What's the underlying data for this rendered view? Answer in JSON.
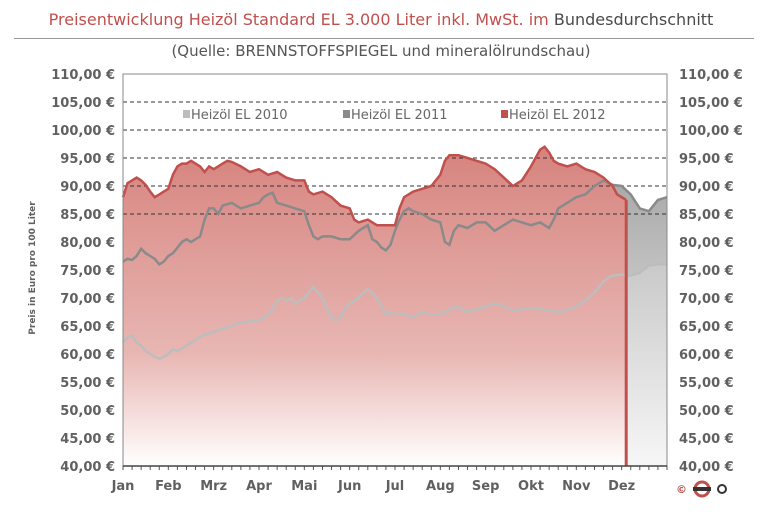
{
  "header": {
    "title_part1": "Preisentwicklung Heizöl Standard EL 3.000 Liter inkl. MwSt. im",
    "title_part2": "Bundesdurchschnitt",
    "subtitle": "(Quelle: BRENNSTOFFSPIEGEL  und mineralölrundschau)"
  },
  "logo": {
    "copyright": "©",
    "icon": "company-logo-icon"
  },
  "colors": {
    "s2010": "#bdbdbd",
    "s2011": "#8a8a8a",
    "s2012": "#c0504d",
    "fill2012": "#d98883"
  },
  "chart_data": {
    "type": "area",
    "title": "Preisentwicklung Heizöl Standard EL 3.000 Liter inkl. MwSt. im Bundesdurchschnitt",
    "ylabel": "Preis in Euro pro 100 Liter",
    "xlabel": "",
    "ylim": [
      40,
      110
    ],
    "y_ticks": [
      "40,00 €",
      "45,00 €",
      "50,00 €",
      "55,00 €",
      "60,00 €",
      "65,00 €",
      "70,00 €",
      "75,00 €",
      "80,00 €",
      "85,00 €",
      "90,00 €",
      "95,00 €",
      "100,00 €",
      "105,00 €",
      "110,00 €"
    ],
    "y_gridlines_at": [
      85,
      90,
      95,
      100,
      105
    ],
    "categories": [
      "Jan",
      "Feb",
      "Mrz",
      "Apr",
      "Mai",
      "Jun",
      "Jul",
      "Aug",
      "Sep",
      "Okt",
      "Nov",
      "Dez"
    ],
    "legend_position": "top",
    "series": [
      {
        "name": "Heizöl EL 2010",
        "values": [
          [
            0.0,
            62
          ],
          [
            0.1,
            63
          ],
          [
            0.2,
            63.3
          ],
          [
            0.3,
            62
          ],
          [
            0.4,
            61.5
          ],
          [
            0.5,
            60.5
          ],
          [
            0.6,
            60
          ],
          [
            0.7,
            59.5
          ],
          [
            0.8,
            59.2
          ],
          [
            0.9,
            59.5
          ],
          [
            1.0,
            60
          ],
          [
            1.1,
            60.8
          ],
          [
            1.2,
            60.5
          ],
          [
            1.3,
            61
          ],
          [
            1.4,
            61.5
          ],
          [
            1.5,
            62
          ],
          [
            1.6,
            62.5
          ],
          [
            1.7,
            63
          ],
          [
            1.8,
            63.5
          ],
          [
            1.9,
            63.6
          ],
          [
            2.0,
            64
          ],
          [
            2.2,
            64.5
          ],
          [
            2.4,
            65
          ],
          [
            2.6,
            65.6
          ],
          [
            2.8,
            65.8
          ],
          [
            3.0,
            66
          ],
          [
            3.1,
            66.5
          ],
          [
            3.2,
            67
          ],
          [
            3.3,
            68
          ],
          [
            3.4,
            69.5
          ],
          [
            3.5,
            70
          ],
          [
            3.6,
            69.5
          ],
          [
            3.7,
            70
          ],
          [
            3.8,
            69
          ],
          [
            3.9,
            69.5
          ],
          [
            4.0,
            70
          ],
          [
            4.1,
            71
          ],
          [
            4.2,
            72
          ],
          [
            4.3,
            71
          ],
          [
            4.4,
            70
          ],
          [
            4.5,
            68
          ],
          [
            4.6,
            66.5
          ],
          [
            4.7,
            66
          ],
          [
            4.8,
            66.5
          ],
          [
            4.9,
            68
          ],
          [
            5.0,
            69
          ],
          [
            5.1,
            69.5
          ],
          [
            5.2,
            70
          ],
          [
            5.3,
            71
          ],
          [
            5.4,
            71.5
          ],
          [
            5.5,
            71
          ],
          [
            5.6,
            70
          ],
          [
            5.7,
            68.5
          ],
          [
            5.8,
            67
          ],
          [
            5.9,
            67.5
          ],
          [
            6.0,
            67
          ],
          [
            6.2,
            67.2
          ],
          [
            6.4,
            66.5
          ],
          [
            6.6,
            67.5
          ],
          [
            6.8,
            67
          ],
          [
            7.0,
            67
          ],
          [
            7.2,
            68
          ],
          [
            7.4,
            68.5
          ],
          [
            7.6,
            67.5
          ],
          [
            7.8,
            68
          ],
          [
            8.0,
            68.5
          ],
          [
            8.2,
            69
          ],
          [
            8.4,
            68.5
          ],
          [
            8.6,
            67.8
          ],
          [
            8.8,
            68
          ],
          [
            9.0,
            68.2
          ],
          [
            9.2,
            68
          ],
          [
            9.4,
            67.8
          ],
          [
            9.6,
            67.5
          ],
          [
            9.8,
            67.8
          ],
          [
            10.0,
            68.5
          ],
          [
            10.2,
            69.5
          ],
          [
            10.4,
            71
          ],
          [
            10.6,
            73
          ],
          [
            10.8,
            74
          ],
          [
            11.0,
            74.2
          ],
          [
            11.2,
            74
          ],
          [
            11.4,
            74.5
          ],
          [
            11.6,
            75.8
          ],
          [
            11.8,
            76
          ],
          [
            12.0,
            76
          ]
        ]
      },
      {
        "name": "Heizöl EL 2011",
        "values": [
          [
            0.0,
            76.5
          ],
          [
            0.1,
            77
          ],
          [
            0.2,
            76.8
          ],
          [
            0.3,
            77.5
          ],
          [
            0.4,
            78.8
          ],
          [
            0.5,
            78
          ],
          [
            0.6,
            77.5
          ],
          [
            0.7,
            77
          ],
          [
            0.8,
            76
          ],
          [
            0.9,
            76.5
          ],
          [
            1.0,
            77.5
          ],
          [
            1.1,
            78
          ],
          [
            1.2,
            79
          ],
          [
            1.3,
            80
          ],
          [
            1.4,
            80.5
          ],
          [
            1.5,
            80
          ],
          [
            1.6,
            80.5
          ],
          [
            1.7,
            81
          ],
          [
            1.8,
            84
          ],
          [
            1.9,
            86
          ],
          [
            2.0,
            86
          ],
          [
            2.1,
            85
          ],
          [
            2.2,
            86.5
          ],
          [
            2.4,
            87
          ],
          [
            2.6,
            86
          ],
          [
            2.8,
            86.5
          ],
          [
            3.0,
            87
          ],
          [
            3.1,
            88
          ],
          [
            3.2,
            88.5
          ],
          [
            3.3,
            88.8
          ],
          [
            3.4,
            87
          ],
          [
            3.6,
            86.5
          ],
          [
            3.8,
            86
          ],
          [
            4.0,
            85.5
          ],
          [
            4.1,
            83
          ],
          [
            4.2,
            81
          ],
          [
            4.3,
            80.5
          ],
          [
            4.4,
            81
          ],
          [
            4.6,
            81
          ],
          [
            4.8,
            80.5
          ],
          [
            5.0,
            80.5
          ],
          [
            5.2,
            82
          ],
          [
            5.4,
            83
          ],
          [
            5.5,
            80.5
          ],
          [
            5.6,
            80
          ],
          [
            5.7,
            79
          ],
          [
            5.8,
            78.5
          ],
          [
            5.9,
            79.5
          ],
          [
            6.0,
            82
          ],
          [
            6.1,
            84
          ],
          [
            6.2,
            85.5
          ],
          [
            6.3,
            86
          ],
          [
            6.4,
            85.5
          ],
          [
            6.6,
            85
          ],
          [
            6.8,
            84
          ],
          [
            7.0,
            83.5
          ],
          [
            7.1,
            80
          ],
          [
            7.2,
            79.5
          ],
          [
            7.3,
            82
          ],
          [
            7.4,
            83
          ],
          [
            7.6,
            82.5
          ],
          [
            7.8,
            83.5
          ],
          [
            8.0,
            83.5
          ],
          [
            8.2,
            82
          ],
          [
            8.4,
            83
          ],
          [
            8.6,
            84
          ],
          [
            8.8,
            83.5
          ],
          [
            9.0,
            83
          ],
          [
            9.2,
            83.5
          ],
          [
            9.4,
            82.5
          ],
          [
            9.5,
            84
          ],
          [
            9.6,
            86
          ],
          [
            9.8,
            87
          ],
          [
            10.0,
            88
          ],
          [
            10.2,
            88.5
          ],
          [
            10.4,
            90
          ],
          [
            10.6,
            91
          ],
          [
            10.8,
            90.2
          ],
          [
            11.0,
            90
          ],
          [
            11.2,
            88.5
          ],
          [
            11.4,
            86
          ],
          [
            11.6,
            85.5
          ],
          [
            11.8,
            87.5
          ],
          [
            12.0,
            88
          ]
        ]
      },
      {
        "name": "Heizöl EL 2012",
        "values": [
          [
            0.0,
            88
          ],
          [
            0.1,
            90.5
          ],
          [
            0.2,
            91
          ],
          [
            0.3,
            91.5
          ],
          [
            0.4,
            91
          ],
          [
            0.5,
            90.2
          ],
          [
            0.6,
            89
          ],
          [
            0.7,
            88
          ],
          [
            0.8,
            88.5
          ],
          [
            0.9,
            89
          ],
          [
            1.0,
            89.5
          ],
          [
            1.1,
            92
          ],
          [
            1.2,
            93.5
          ],
          [
            1.3,
            94
          ],
          [
            1.4,
            94
          ],
          [
            1.5,
            94.5
          ],
          [
            1.6,
            94
          ],
          [
            1.7,
            93.5
          ],
          [
            1.8,
            92.5
          ],
          [
            1.9,
            93.5
          ],
          [
            2.0,
            93
          ],
          [
            2.2,
            94
          ],
          [
            2.3,
            94.5
          ],
          [
            2.4,
            94.3
          ],
          [
            2.6,
            93.5
          ],
          [
            2.8,
            92.5
          ],
          [
            3.0,
            93
          ],
          [
            3.2,
            92
          ],
          [
            3.4,
            92.5
          ],
          [
            3.6,
            91.5
          ],
          [
            3.8,
            91
          ],
          [
            4.0,
            91
          ],
          [
            4.1,
            89
          ],
          [
            4.2,
            88.5
          ],
          [
            4.4,
            89
          ],
          [
            4.6,
            88
          ],
          [
            4.8,
            86.5
          ],
          [
            5.0,
            86
          ],
          [
            5.1,
            84
          ],
          [
            5.2,
            83.5
          ],
          [
            5.4,
            84
          ],
          [
            5.6,
            83
          ],
          [
            5.8,
            83
          ],
          [
            6.0,
            83
          ],
          [
            6.1,
            86
          ],
          [
            6.2,
            88
          ],
          [
            6.4,
            89
          ],
          [
            6.6,
            89.5
          ],
          [
            6.8,
            90
          ],
          [
            7.0,
            92
          ],
          [
            7.1,
            94.5
          ],
          [
            7.2,
            95.5
          ],
          [
            7.4,
            95.5
          ],
          [
            7.6,
            95
          ],
          [
            7.8,
            94.5
          ],
          [
            8.0,
            94
          ],
          [
            8.2,
            93
          ],
          [
            8.4,
            91.5
          ],
          [
            8.6,
            90
          ],
          [
            8.8,
            91
          ],
          [
            9.0,
            93.5
          ],
          [
            9.2,
            96.5
          ],
          [
            9.3,
            97
          ],
          [
            9.4,
            96
          ],
          [
            9.5,
            94.5
          ],
          [
            9.6,
            94
          ],
          [
            9.8,
            93.5
          ],
          [
            10.0,
            94
          ],
          [
            10.2,
            93
          ],
          [
            10.4,
            92.5
          ],
          [
            10.6,
            91.5
          ],
          [
            10.8,
            90
          ],
          [
            10.9,
            88.5
          ],
          [
            11.0,
            88
          ],
          [
            11.1,
            87.5
          ]
        ]
      }
    ]
  }
}
